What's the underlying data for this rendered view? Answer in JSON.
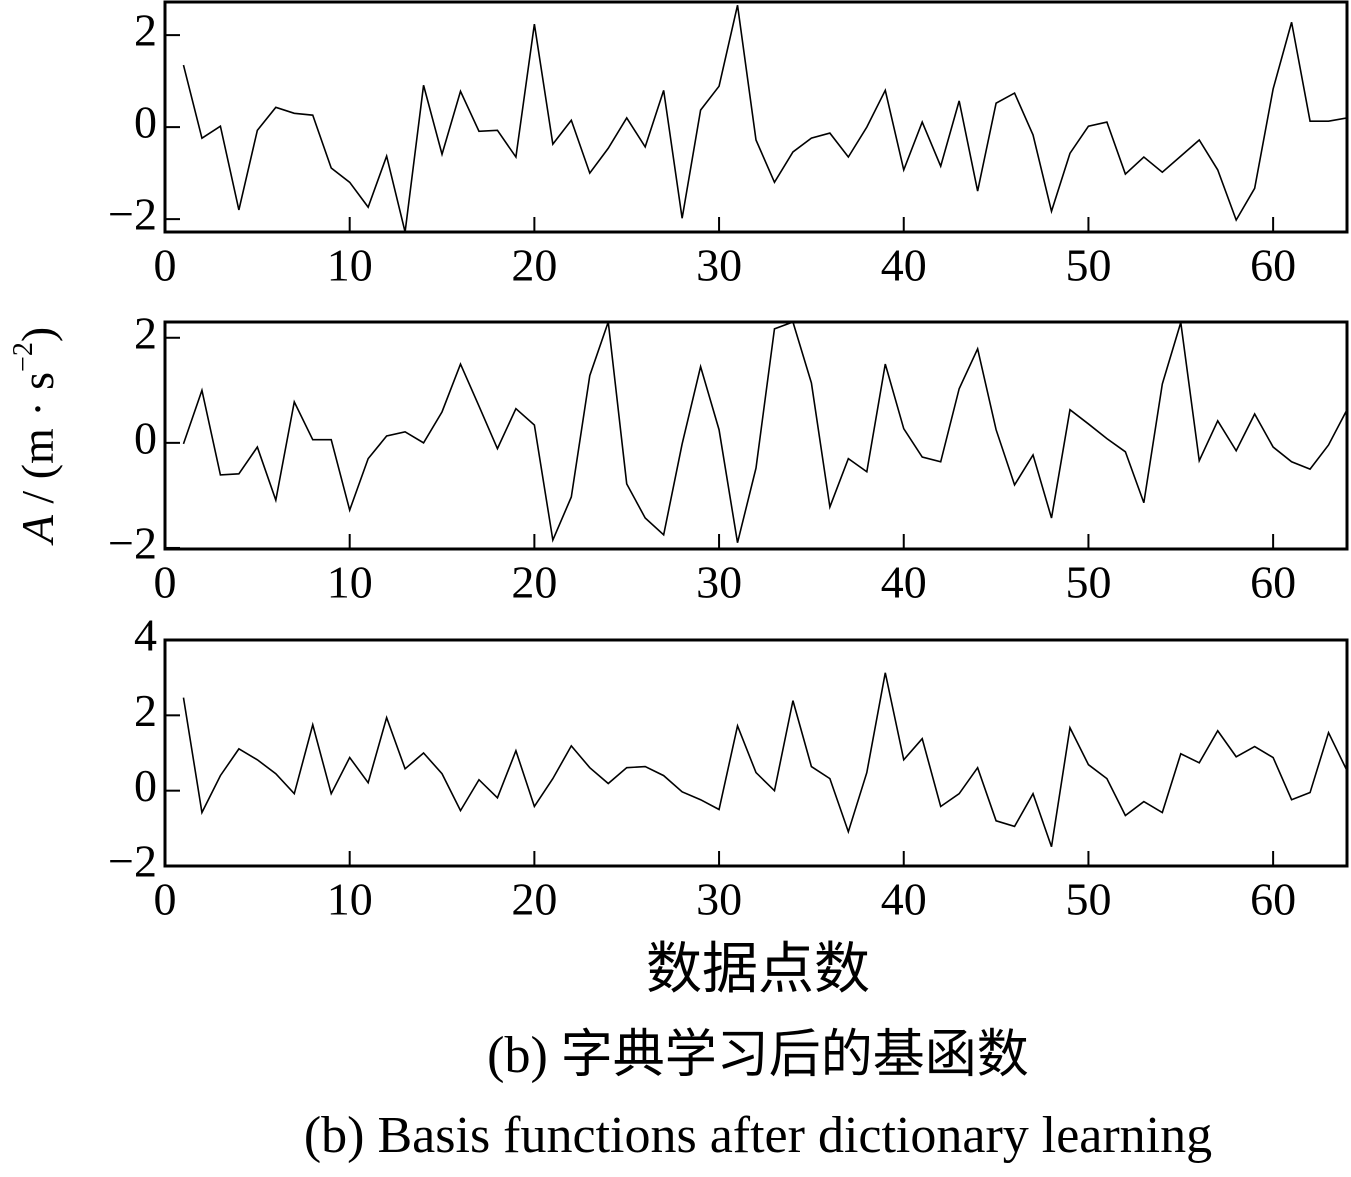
{
  "y_label": [
    "A",
    " / (m · s",
    "−2",
    ")"
  ],
  "x_label": "数据点数",
  "caption_zh": "(b)  字典学习后的基函数",
  "caption_en": "(b)  Basis functions after dictionary learning",
  "chart_data": [
    {
      "type": "line",
      "color": "#000000",
      "x": [
        1,
        2,
        3,
        4,
        5,
        6,
        7,
        8,
        9,
        10,
        11,
        12,
        13,
        14,
        15,
        16,
        17,
        18,
        19,
        20,
        21,
        22,
        23,
        24,
        25,
        26,
        27,
        28,
        29,
        30,
        31,
        32,
        33,
        34,
        35,
        36,
        37,
        38,
        39,
        40,
        41,
        42,
        43,
        44,
        45,
        46,
        47,
        48,
        49,
        50,
        51,
        52,
        53,
        54,
        55,
        56,
        57,
        58,
        59,
        60,
        61,
        62,
        63,
        64
      ],
      "values": [
        1.35,
        -0.24,
        0.02,
        -1.8,
        -0.07,
        0.43,
        0.3,
        0.26,
        -0.89,
        -1.2,
        -1.74,
        -0.63,
        -2.28,
        0.91,
        -0.59,
        0.78,
        -0.09,
        -0.07,
        -0.65,
        2.24,
        -0.37,
        0.15,
        -1.0,
        -0.46,
        0.2,
        -0.43,
        0.8,
        -1.98,
        0.37,
        0.89,
        2.65,
        -0.28,
        -1.2,
        -0.54,
        -0.24,
        -0.13,
        -0.65,
        0,
        0.8,
        -0.93,
        0.11,
        -0.85,
        0.57,
        -1.39,
        0.52,
        0.74,
        -0.17,
        -1.83,
        -0.57,
        0.02,
        0.11,
        -1.02,
        -0.65,
        -0.98,
        -0.63,
        -0.28,
        -0.93,
        -2.02,
        -1.33,
        0.83,
        2.28,
        0.13,
        0.13,
        0.2
      ],
      "xlim": [
        0,
        64
      ],
      "xticks": [
        0,
        10,
        20,
        30,
        40,
        50,
        60
      ],
      "ylim": [
        -2.28,
        2.72
      ],
      "yticks": [
        {
          "value": -2,
          "label": "−2"
        },
        0,
        2
      ]
    },
    {
      "type": "line",
      "color": "#000000",
      "x": [
        1,
        2,
        3,
        4,
        5,
        6,
        7,
        8,
        9,
        10,
        11,
        12,
        13,
        14,
        15,
        16,
        17,
        18,
        19,
        20,
        21,
        22,
        23,
        24,
        25,
        26,
        27,
        28,
        29,
        30,
        31,
        32,
        33,
        34,
        35,
        36,
        37,
        38,
        39,
        40,
        41,
        42,
        43,
        44,
        45,
        46,
        47,
        48,
        49,
        50,
        51,
        52,
        53,
        54,
        55,
        56,
        57,
        58,
        59,
        60,
        61,
        62,
        63,
        64
      ],
      "values": [
        -0.02,
        1.0,
        -0.61,
        -0.59,
        -0.08,
        -1.09,
        0.78,
        0.06,
        0.06,
        -1.28,
        -0.3,
        0.13,
        0.21,
        0,
        0.59,
        1.5,
        0.7,
        -0.11,
        0.65,
        0.34,
        -1.85,
        -1.03,
        1.28,
        2.3,
        -0.78,
        -1.43,
        -1.75,
        -0.02,
        1.45,
        0.25,
        -1.9,
        -0.48,
        2.17,
        2.3,
        1.14,
        -1.22,
        -0.3,
        -0.55,
        1.5,
        0.27,
        -0.27,
        -0.36,
        1.03,
        1.79,
        0.25,
        -0.8,
        -0.23,
        -1.43,
        0.63,
        0.36,
        0.08,
        -0.17,
        -1.14,
        1.12,
        2.29,
        -0.34,
        0.42,
        -0.15,
        0.55,
        -0.08,
        -0.36,
        -0.5,
        -0.04,
        0.63
      ],
      "xlim": [
        0,
        64
      ],
      "xticks": [
        0,
        10,
        20,
        30,
        40,
        50,
        60
      ],
      "ylim": [
        -2.02,
        2.3
      ],
      "yticks": [
        {
          "value": -2,
          "label": "−2"
        },
        0,
        2
      ]
    },
    {
      "type": "line",
      "color": "#000000",
      "x": [
        1,
        2,
        3,
        4,
        5,
        6,
        7,
        8,
        9,
        10,
        11,
        12,
        13,
        14,
        15,
        16,
        17,
        18,
        19,
        20,
        21,
        22,
        23,
        24,
        25,
        26,
        27,
        28,
        29,
        30,
        31,
        32,
        33,
        34,
        35,
        36,
        37,
        38,
        39,
        40,
        41,
        42,
        43,
        44,
        45,
        46,
        47,
        48,
        49,
        50,
        51,
        52,
        53,
        54,
        55,
        56,
        57,
        58,
        59,
        60,
        61,
        62,
        63,
        64
      ],
      "values": [
        2.47,
        -0.58,
        0.4,
        1.11,
        0.82,
        0.45,
        -0.08,
        1.75,
        -0.08,
        0.88,
        0.21,
        1.94,
        0.58,
        1.0,
        0.45,
        -0.53,
        0.29,
        -0.19,
        1.06,
        -0.42,
        0.32,
        1.19,
        0.61,
        0.19,
        0.61,
        0.64,
        0.4,
        -0.03,
        -0.24,
        -0.5,
        1.72,
        0.48,
        0,
        2.39,
        0.64,
        0.32,
        -1.09,
        0.48,
        3.13,
        0.82,
        1.38,
        -0.42,
        -0.08,
        0.61,
        -0.8,
        -0.95,
        -0.08,
        -1.49,
        1.67,
        0.69,
        0.32,
        -0.66,
        -0.29,
        -0.58,
        0.98,
        0.74,
        1.59,
        0.9,
        1.17,
        0.88,
        -0.24,
        -0.05,
        1.54,
        0.53
      ],
      "xlim": [
        0,
        64
      ],
      "xticks": [
        0,
        10,
        20,
        30,
        40,
        50,
        60
      ],
      "ylim": [
        -2,
        4
      ],
      "yticks": [
        {
          "value": -2,
          "label": "−2"
        },
        0,
        2,
        4
      ]
    }
  ]
}
